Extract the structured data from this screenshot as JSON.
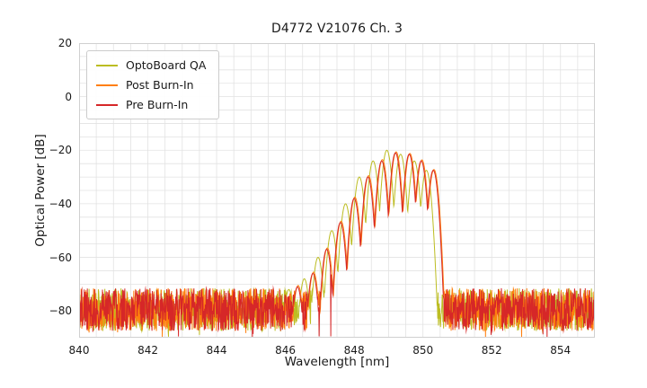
{
  "chart": {
    "title": "D4772 V21076 Ch. 3",
    "xlabel": "Wavelength [nm]",
    "ylabel": "Optical Power [dB]"
  },
  "chart_data": {
    "type": "line",
    "title": "D4772 V21076 Ch. 3",
    "xlabel": "Wavelength [nm]",
    "ylabel": "Optical Power [dB]",
    "xlim": [
      840,
      855
    ],
    "ylim": [
      -90,
      20
    ],
    "x_ticks": [
      840,
      842,
      844,
      846,
      848,
      850,
      852,
      854
    ],
    "y_ticks": [
      20,
      0,
      -20,
      -40,
      -60,
      -80
    ],
    "grid": {
      "x_step": 0.5,
      "y_step": 5,
      "color": "#e2e2e2",
      "border_color": "#d0d0d0"
    },
    "legend_position": "upper left",
    "noise_floor_dB": {
      "mean": -79.5,
      "spread": 8,
      "deep_spike_prob": 0.02,
      "deep_spike_extra": 7
    },
    "sample_step_nm": 0.01,
    "mode_shape": "gaussian_dB",
    "series": [
      {
        "name": "OptoBoard QA",
        "color": "#bcbd22",
        "seed": 11,
        "mode_sigma_nm": 0.031,
        "modes": [
          [
            846.1,
            -72
          ],
          [
            846.55,
            -68
          ],
          [
            846.95,
            -60
          ],
          [
            847.35,
            -50
          ],
          [
            847.75,
            -40
          ],
          [
            848.15,
            -30
          ],
          [
            848.55,
            -24
          ],
          [
            848.95,
            -20
          ],
          [
            849.35,
            -21.5
          ],
          [
            849.75,
            -24
          ],
          [
            850.1,
            -27.5
          ]
        ]
      },
      {
        "name": "Post Burn-In",
        "color": "#ff7f0e",
        "seed": 23,
        "mode_sigma_nm": 0.03,
        "modes": [
          [
            846.37,
            -70.5
          ],
          [
            846.82,
            -65.5
          ],
          [
            847.22,
            -56.5
          ],
          [
            847.62,
            -46.5
          ],
          [
            848.02,
            -37.5
          ],
          [
            848.42,
            -29.5
          ],
          [
            848.82,
            -23.5
          ],
          [
            849.22,
            -20.6
          ],
          [
            849.62,
            -21.2
          ],
          [
            849.97,
            -23.6
          ],
          [
            850.32,
            -27.2
          ]
        ]
      },
      {
        "name": "Pre Burn-In",
        "color": "#d62728",
        "seed": 37,
        "mode_sigma_nm": 0.03,
        "modes": [
          [
            846.35,
            -71
          ],
          [
            846.8,
            -66
          ],
          [
            847.2,
            -57
          ],
          [
            847.6,
            -47
          ],
          [
            848.0,
            -38
          ],
          [
            848.4,
            -30
          ],
          [
            848.8,
            -24
          ],
          [
            849.2,
            -21
          ],
          [
            849.6,
            -21.5
          ],
          [
            849.95,
            -24
          ],
          [
            850.3,
            -27.5
          ]
        ],
        "notches": [
          846.98,
          847.32
        ]
      }
    ]
  }
}
